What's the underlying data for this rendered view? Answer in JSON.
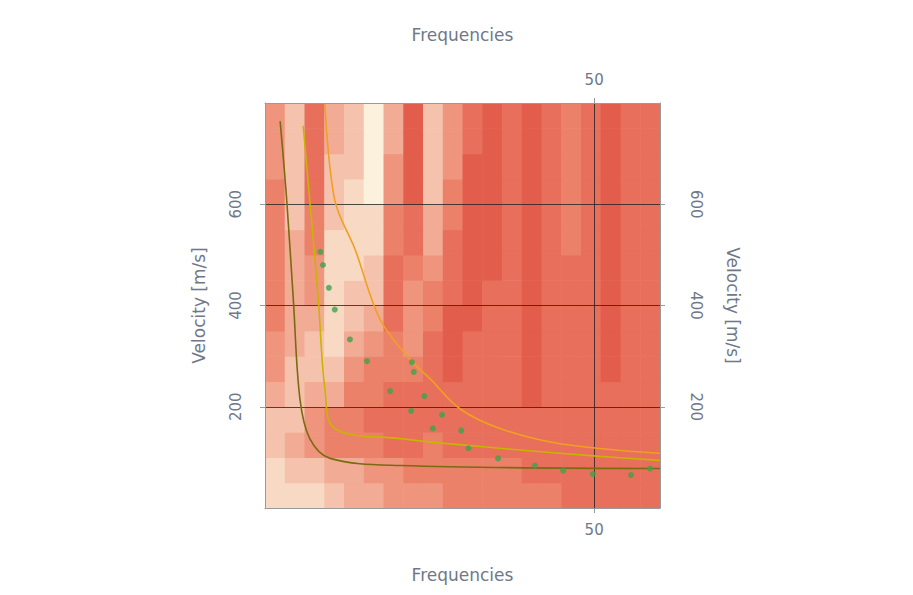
{
  "chart_data": {
    "type": "heatmap",
    "xlabel": "Frequencies",
    "ylabel": "Velocity [m/s]",
    "xlim": [
      0,
      60
    ],
    "xticks": [
      50
    ],
    "ylim": [
      0,
      800
    ],
    "yticks": [
      200,
      400,
      600
    ],
    "grid": true,
    "heatmap": {
      "x_bins": [
        0,
        3,
        6,
        9,
        12,
        15,
        18,
        21,
        24,
        27,
        30,
        33,
        36,
        39,
        42,
        45,
        48,
        51,
        54,
        57,
        60
      ],
      "y_bins": [
        0,
        50,
        100,
        150,
        200,
        250,
        300,
        350,
        400,
        450,
        500,
        550,
        600,
        650,
        700,
        750,
        800
      ],
      "cell_range": [
        0,
        9
      ],
      "cells": [
        [
          8,
          8,
          8,
          7,
          6,
          6,
          5,
          5,
          5,
          4,
          4,
          4,
          4,
          4,
          4,
          3,
          3,
          3,
          3,
          3
        ],
        [
          8,
          7,
          7,
          6,
          6,
          5,
          5,
          4,
          4,
          4,
          4,
          4,
          4,
          3,
          3,
          3,
          3,
          3,
          3,
          3
        ],
        [
          7,
          6,
          5,
          4,
          4,
          4,
          3,
          3,
          4,
          3,
          3,
          3,
          3,
          3,
          3,
          3,
          3,
          3,
          3,
          3
        ],
        [
          7,
          7,
          5,
          4,
          4,
          3,
          3,
          3,
          3,
          3,
          3,
          3,
          3,
          3,
          3,
          3,
          3,
          3,
          3,
          3
        ],
        [
          6,
          7,
          6,
          6,
          4,
          4,
          3,
          3,
          3,
          3,
          3,
          3,
          3,
          2,
          3,
          3,
          3,
          3,
          3,
          3
        ],
        [
          5,
          7,
          7,
          7,
          5,
          4,
          4,
          4,
          3,
          2,
          3,
          3,
          3,
          2,
          3,
          3,
          3,
          2,
          3,
          3
        ],
        [
          5,
          6,
          7,
          8,
          6,
          5,
          4,
          5,
          3,
          2,
          3,
          3,
          3,
          2,
          3,
          3,
          3,
          2,
          3,
          3
        ],
        [
          4,
          6,
          6,
          8,
          7,
          6,
          3,
          5,
          4,
          2,
          2,
          3,
          3,
          2,
          3,
          3,
          3,
          2,
          3,
          3
        ],
        [
          4,
          6,
          5,
          8,
          7,
          7,
          3,
          5,
          4,
          3,
          2,
          3,
          3,
          2,
          3,
          3,
          3,
          2,
          3,
          3
        ],
        [
          4,
          6,
          5,
          8,
          8,
          7,
          3,
          4,
          5,
          3,
          2,
          2,
          3,
          2,
          3,
          3,
          3,
          2,
          3,
          3
        ],
        [
          4,
          6,
          4,
          8,
          8,
          8,
          4,
          3,
          6,
          3,
          2,
          2,
          3,
          2,
          3,
          4,
          3,
          2,
          3,
          3
        ],
        [
          4,
          7,
          4,
          7,
          8,
          8,
          4,
          3,
          6,
          4,
          2,
          2,
          3,
          2,
          3,
          4,
          3,
          2,
          3,
          3
        ],
        [
          4,
          7,
          3,
          7,
          8,
          9,
          5,
          2,
          7,
          4,
          2,
          2,
          3,
          2,
          3,
          4,
          3,
          2,
          3,
          3
        ],
        [
          5,
          7,
          3,
          7,
          7,
          9,
          5,
          2,
          7,
          5,
          2,
          2,
          3,
          2,
          3,
          4,
          3,
          2,
          3,
          3
        ],
        [
          5,
          7,
          3,
          6,
          7,
          9,
          6,
          2,
          7,
          5,
          3,
          2,
          3,
          2,
          3,
          4,
          3,
          2,
          3,
          3
        ],
        [
          5,
          7,
          3,
          6,
          7,
          9,
          6,
          2,
          7,
          5,
          3,
          2,
          3,
          2,
          3,
          4,
          3,
          2,
          3,
          3
        ]
      ]
    },
    "series": [
      {
        "type": "line",
        "color": "#f0a020",
        "line_style": "solid",
        "x": [
          9.1,
          10.6,
          13.7,
          17.5,
          22.0,
          25.1,
          29.6,
          35.7,
          44.8,
          60.0
        ],
        "values": [
          798,
          608,
          510,
          372,
          294,
          255,
          196,
          157,
          127,
          108
        ]
      },
      {
        "type": "line",
        "color": "#c9b400",
        "line_style": "solid",
        "x": [
          5.8,
          6.8,
          8.1,
          9.1,
          10.6,
          20.5,
          35.7,
          50.9,
          60.0
        ],
        "values": [
          755,
          608,
          412,
          235,
          157,
          137,
          118,
          102,
          94
        ]
      },
      {
        "type": "line",
        "color": "#7a6a10",
        "line_style": "solid",
        "x": [
          2.3,
          3.3,
          4.3,
          5.3,
          6.8,
          9.9,
          20.5,
          60.0
        ],
        "values": [
          764,
          608,
          412,
          216,
          137,
          98,
          84,
          78
        ]
      },
      {
        "type": "scatter",
        "color": "#3fa34d",
        "marker": "circle",
        "x": [
          8.4,
          8.8,
          9.7,
          10.6,
          12.9,
          15.5,
          19.0,
          22.3,
          22.6,
          24.2,
          22.2,
          26.9,
          25.5,
          29.8,
          30.9,
          35.4,
          41.0,
          45.3,
          49.8,
          55.6,
          58.5
        ],
        "values": [
          506,
          480,
          435,
          392,
          333,
          290,
          231,
          288,
          269,
          221,
          192,
          184,
          157,
          153,
          118,
          98,
          84,
          74,
          67,
          65,
          78
        ]
      }
    ]
  }
}
